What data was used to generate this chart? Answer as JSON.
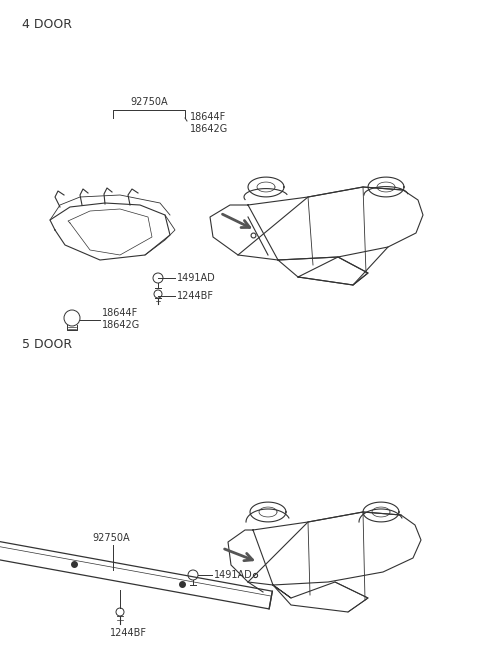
{
  "bg_color": "#ffffff",
  "title_4door": "4 DOOR",
  "title_5door": "5 DOOR",
  "parts_4door": {
    "lamp_assembly": "92750A",
    "bolt1_label": "18644F\n18642G",
    "grommet_label": "1491AD",
    "screw_label": "1244BF",
    "bulb_label": "18644F\n18642G"
  },
  "parts_5door": {
    "lamp_assembly": "92750A",
    "grommet_label": "1491AD",
    "screw_label": "1244BF"
  },
  "font_size_title": 9,
  "font_size_label": 7,
  "text_color": "#333333"
}
